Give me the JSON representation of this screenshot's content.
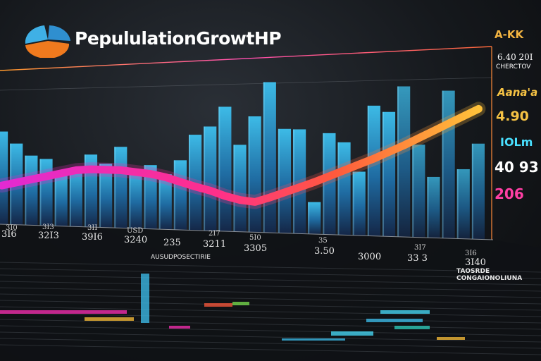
{
  "header": {
    "title": "PepululationGrowtHP"
  },
  "side_labels": [
    {
      "text": "A-KK",
      "color": "#f2b441"
    },
    {
      "text": "6.40 20I",
      "color": "#ffffff"
    },
    {
      "text": "CHERCTOV",
      "color": "#ffffff"
    },
    {
      "text": "Aana'a",
      "color": "#f5c244"
    },
    {
      "text": "4.90",
      "color": "#f5c244"
    },
    {
      "text": "IOLm",
      "color": "#49e0ff"
    },
    {
      "text": "40 93",
      "color": "#ffffff"
    },
    {
      "text": "206",
      "color": "#ff3fa4"
    }
  ],
  "captions": {
    "upper": "AUSUDPOSECTIRIE",
    "right": "TAOSRDE CONGAIONOLIUNA"
  },
  "chart_data": {
    "type": "bar",
    "title": "PepululationGrowtHP",
    "values": [
      160,
      140,
      120,
      115,
      90,
      100,
      125,
      110,
      140,
      100,
      110,
      95,
      120,
      165,
      180,
      215,
      150,
      200,
      260,
      180,
      180,
      55,
      175,
      160,
      110,
      225,
      215,
      260,
      160,
      105,
      255,
      120,
      165
    ],
    "trend_line": [
      55,
      60,
      65,
      70,
      75,
      80,
      82,
      82,
      82,
      80,
      78,
      74,
      68,
      62,
      57,
      50,
      45,
      43,
      50,
      58,
      66,
      74,
      83,
      92,
      101,
      110,
      120,
      130,
      141,
      152,
      163,
      174,
      185
    ],
    "tick_labels_upper": [
      "3I0",
      "3I3",
      "3II",
      "USD",
      "2I7",
      "5I0",
      "35",
      "3I7",
      "3I6"
    ],
    "tick_labels_lower": [
      "3I6",
      "32I3",
      "39I6",
      "3240",
      "235",
      "3211",
      "3305",
      "3.50",
      "3000",
      "33 3",
      "3I40"
    ],
    "colors": {
      "bar_top": "#3ec2f0",
      "bar_bottom": "#1a3a66",
      "line_start": "#ff2fb5",
      "line_mid": "#ff5a4a",
      "line_end": "#ffc23a"
    }
  }
}
